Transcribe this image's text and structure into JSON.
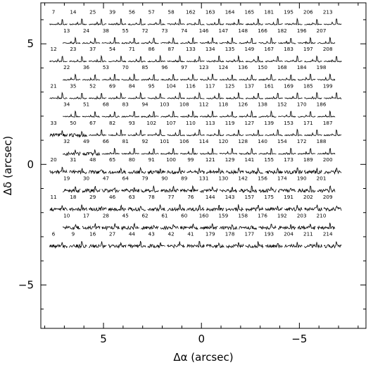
{
  "chart_data": {
    "type": "scatter",
    "description_of_marks": "grid of small fiber spectra (IFU layout), each labeled with its fiber number",
    "xlabel": "Δα (arcsec)",
    "ylabel": "Δδ (arcsec)",
    "xlim": [
      8.2,
      -8.4
    ],
    "ylim": [
      -6.8,
      6.7
    ],
    "x_ticks": [
      {
        "value": 5,
        "label": "5"
      },
      {
        "value": 0,
        "label": "0"
      },
      {
        "value": -5,
        "label": "−5"
      }
    ],
    "y_ticks": [
      {
        "value": 5,
        "label": "5"
      },
      {
        "value": 0,
        "label": "0"
      },
      {
        "value": -5,
        "label": "−5"
      }
    ],
    "grid": false,
    "rows": [
      {
        "y": 5.81,
        "x_start": 7.3,
        "labels": [
          "7",
          "14",
          "25",
          "39",
          "56",
          "57",
          "58",
          "162",
          "163",
          "164",
          "165",
          "181",
          "195",
          "206",
          "213"
        ]
      },
      {
        "y": 5.03,
        "x_start": 6.63,
        "labels": [
          "13",
          "24",
          "38",
          "55",
          "72",
          "73",
          "74",
          "146",
          "147",
          "148",
          "166",
          "182",
          "196",
          "207"
        ]
      },
      {
        "y": 4.27,
        "x_start": 7.3,
        "labels": [
          "12",
          "23",
          "37",
          "54",
          "71",
          "86",
          "87",
          "133",
          "134",
          "135",
          "149",
          "167",
          "183",
          "197",
          "208"
        ]
      },
      {
        "y": 3.51,
        "x_start": 6.63,
        "labels": [
          "22",
          "36",
          "53",
          "70",
          "85",
          "96",
          "97",
          "123",
          "124",
          "136",
          "150",
          "168",
          "184",
          "198"
        ]
      },
      {
        "y": 2.74,
        "x_start": 7.3,
        "labels": [
          "21",
          "35",
          "52",
          "69",
          "84",
          "95",
          "104",
          "116",
          "117",
          "125",
          "137",
          "161",
          "169",
          "185",
          "199"
        ]
      },
      {
        "y": 1.98,
        "x_start": 6.63,
        "labels": [
          "34",
          "51",
          "68",
          "83",
          "94",
          "103",
          "108",
          "112",
          "118",
          "126",
          "138",
          "152",
          "170",
          "186"
        ]
      },
      {
        "y": 1.21,
        "x_start": 7.3,
        "labels": [
          "33",
          "50",
          "67",
          "82",
          "93",
          "102",
          "107",
          "110",
          "113",
          "119",
          "127",
          "139",
          "153",
          "171",
          "187"
        ]
      },
      {
        "y": 0.44,
        "x_start": 6.63,
        "labels": [
          "32",
          "49",
          "66",
          "81",
          "92",
          "101",
          "106",
          "114",
          "120",
          "128",
          "140",
          "154",
          "172",
          "188"
        ]
      },
      {
        "y": -0.32,
        "x_start": 7.3,
        "labels": [
          "20",
          "31",
          "48",
          "65",
          "80",
          "91",
          "100",
          "99",
          "121",
          "129",
          "141",
          "155",
          "173",
          "189",
          "200"
        ]
      },
      {
        "y": -1.09,
        "x_start": 6.63,
        "labels": [
          "19",
          "30",
          "47",
          "64",
          "79",
          "90",
          "89",
          "131",
          "130",
          "142",
          "156",
          "174",
          "190",
          "201"
        ]
      },
      {
        "y": -1.86,
        "x_start": 7.3,
        "labels": [
          "11",
          "18",
          "29",
          "46",
          "63",
          "78",
          "77",
          "76",
          "144",
          "143",
          "157",
          "175",
          "191",
          "202",
          "209"
        ]
      },
      {
        "y": -2.63,
        "x_start": 6.63,
        "labels": [
          "10",
          "17",
          "28",
          "45",
          "62",
          "61",
          "60",
          "160",
          "159",
          "158",
          "176",
          "192",
          "203",
          "210"
        ]
      },
      {
        "y": -3.39,
        "x_start": 7.3,
        "labels": [
          "6",
          "9",
          "16",
          "27",
          "44",
          "43",
          "42",
          "41",
          "179",
          "178",
          "177",
          "193",
          "204",
          "211",
          "214"
        ]
      }
    ],
    "column_spacing_arcsec": 1.0
  }
}
